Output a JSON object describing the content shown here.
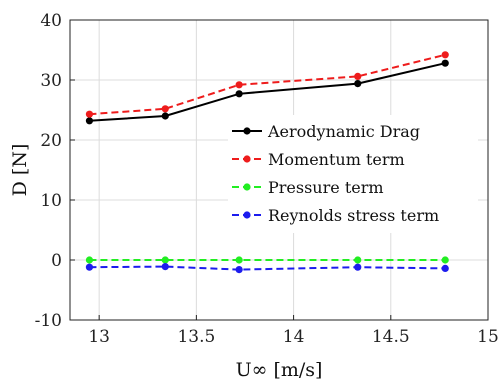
{
  "chart_data": {
    "type": "line",
    "xlabel": "U∞ [m/s]",
    "ylabel": "D [N]",
    "xlim": [
      12.85,
      15.0
    ],
    "ylim": [
      -10,
      40
    ],
    "xticks": [
      13,
      13.5,
      14,
      14.5,
      15
    ],
    "yticks": [
      -10,
      0,
      10,
      20,
      30,
      40
    ],
    "grid": true,
    "legend_position": "right",
    "x": [
      12.95,
      13.34,
      13.72,
      14.33,
      14.78
    ],
    "series": [
      {
        "name": "Aerodynamic Drag",
        "color": "#000000",
        "dashed": false,
        "values": [
          23.2,
          24.0,
          27.7,
          29.4,
          32.8
        ]
      },
      {
        "name": "Momentum term",
        "color": "#ee1c1c",
        "dashed": true,
        "values": [
          24.3,
          25.2,
          29.2,
          30.6,
          34.2
        ]
      },
      {
        "name": "Pressure term",
        "color": "#22ee22",
        "dashed": true,
        "values": [
          0.0,
          0.0,
          0.0,
          0.0,
          0.0
        ]
      },
      {
        "name": "Reynolds stress term",
        "color": "#1c1cee",
        "dashed": true,
        "values": [
          -1.2,
          -1.1,
          -1.6,
          -1.2,
          -1.4
        ]
      }
    ]
  }
}
